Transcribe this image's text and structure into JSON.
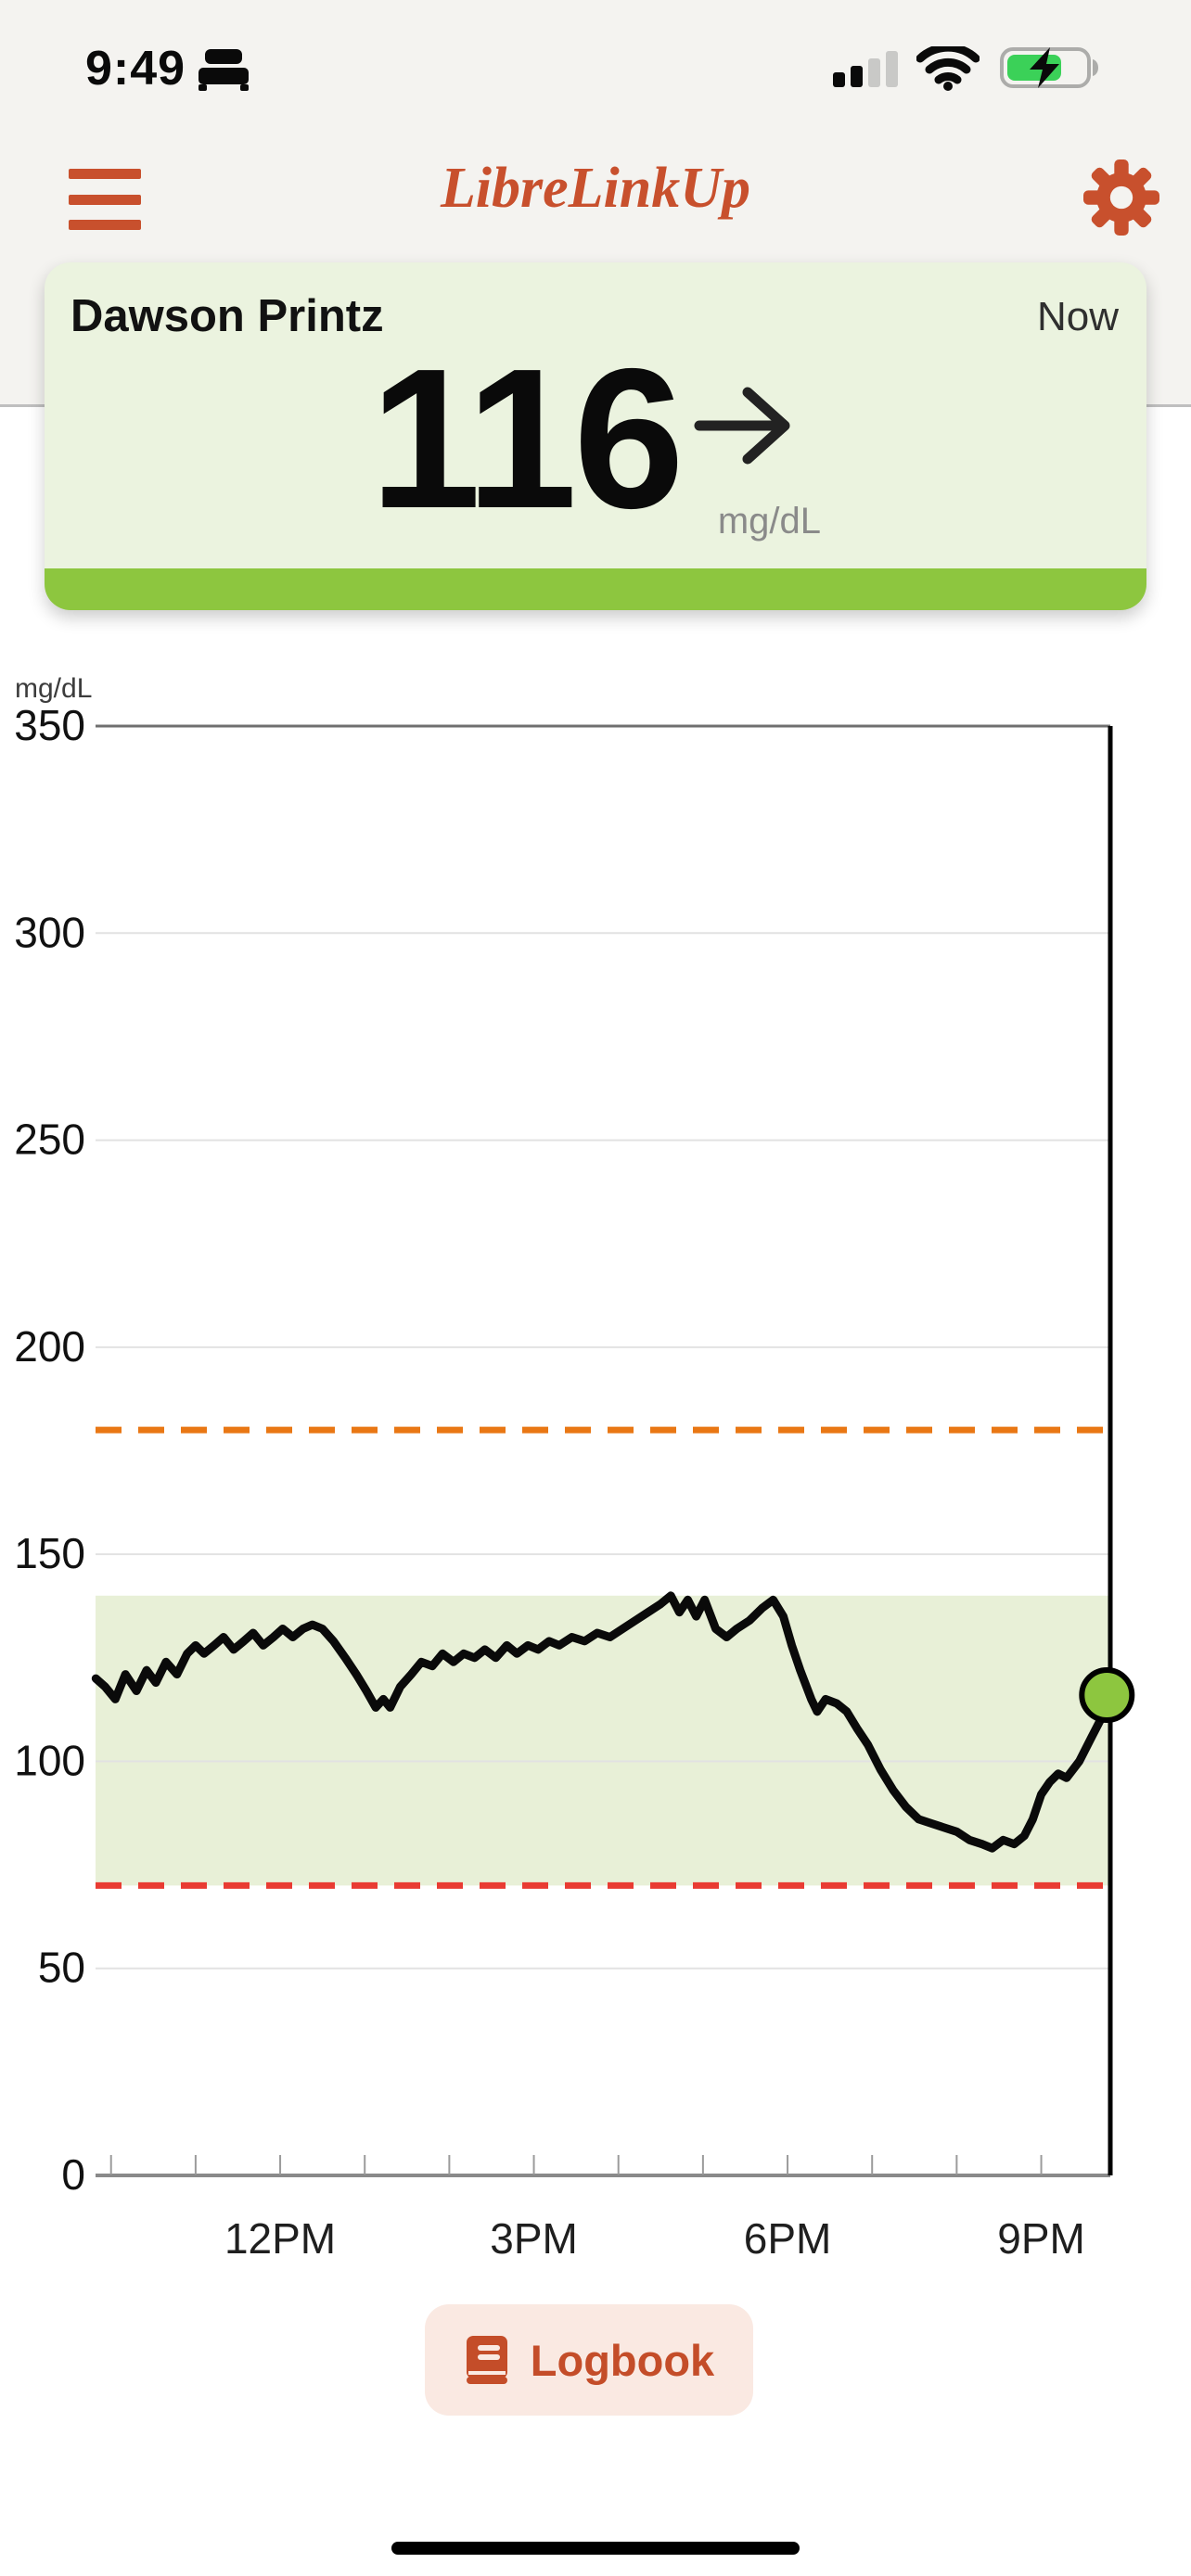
{
  "status_bar": {
    "time": "9:49",
    "icons": {
      "focus": "sleep-bed",
      "cellular": "signal-2-of-4-bars",
      "wifi": "wifi-full",
      "battery": "charging-62-percent"
    }
  },
  "header": {
    "title": "LibreLinkUp"
  },
  "patient_card": {
    "name": "Dawson Printz",
    "timestamp_label": "Now",
    "reading": {
      "value": "116",
      "unit": "mg/dL",
      "trend": "steady-right-arrow"
    }
  },
  "chart_data": {
    "type": "line",
    "title": "12-hour glucose trend",
    "ylabel": "mg/dL",
    "ylim": [
      0,
      350
    ],
    "yticks": [
      0,
      50,
      100,
      150,
      200,
      250,
      300,
      350
    ],
    "x_axis": {
      "start_hour": 9.8167,
      "end_hour": 21.8167,
      "tick_hours": [
        10,
        11,
        12,
        13,
        14,
        15,
        16,
        17,
        18,
        19,
        20,
        21
      ],
      "labels": [
        {
          "hour": 12,
          "label": "12PM"
        },
        {
          "hour": 15,
          "label": "3PM"
        },
        {
          "hour": 18,
          "label": "6PM"
        },
        {
          "hour": 21,
          "label": "9PM"
        }
      ]
    },
    "grid": true,
    "target_range": {
      "low": 70,
      "high": 140
    },
    "high_threshold": 180,
    "low_threshold": 70,
    "series": [
      {
        "name": "glucose",
        "points": [
          [
            9.82,
            120
          ],
          [
            9.93,
            118
          ],
          [
            10.05,
            115
          ],
          [
            10.17,
            121
          ],
          [
            10.3,
            117
          ],
          [
            10.42,
            122
          ],
          [
            10.53,
            119
          ],
          [
            10.65,
            124
          ],
          [
            10.78,
            121
          ],
          [
            10.9,
            126
          ],
          [
            11.0,
            128
          ],
          [
            11.1,
            126
          ],
          [
            11.22,
            128
          ],
          [
            11.33,
            130
          ],
          [
            11.45,
            127
          ],
          [
            11.57,
            129
          ],
          [
            11.68,
            131
          ],
          [
            11.8,
            128
          ],
          [
            11.92,
            130
          ],
          [
            12.03,
            132
          ],
          [
            12.15,
            130
          ],
          [
            12.27,
            132
          ],
          [
            12.38,
            133
          ],
          [
            12.5,
            132
          ],
          [
            12.63,
            129
          ],
          [
            12.77,
            125
          ],
          [
            12.9,
            121
          ],
          [
            13.02,
            117
          ],
          [
            13.13,
            113
          ],
          [
            13.22,
            115
          ],
          [
            13.3,
            113
          ],
          [
            13.42,
            118
          ],
          [
            13.55,
            121
          ],
          [
            13.67,
            124
          ],
          [
            13.8,
            123
          ],
          [
            13.92,
            126
          ],
          [
            14.05,
            124
          ],
          [
            14.17,
            126
          ],
          [
            14.3,
            125
          ],
          [
            14.42,
            127
          ],
          [
            14.55,
            125
          ],
          [
            14.68,
            128
          ],
          [
            14.8,
            126
          ],
          [
            14.93,
            128
          ],
          [
            15.05,
            127
          ],
          [
            15.18,
            129
          ],
          [
            15.3,
            128
          ],
          [
            15.45,
            130
          ],
          [
            15.6,
            129
          ],
          [
            15.75,
            131
          ],
          [
            15.9,
            130
          ],
          [
            16.05,
            132
          ],
          [
            16.2,
            134
          ],
          [
            16.35,
            136
          ],
          [
            16.5,
            138
          ],
          [
            16.62,
            140
          ],
          [
            16.72,
            136
          ],
          [
            16.82,
            139
          ],
          [
            16.92,
            135
          ],
          [
            17.02,
            139
          ],
          [
            17.15,
            132
          ],
          [
            17.28,
            130
          ],
          [
            17.4,
            132
          ],
          [
            17.55,
            134
          ],
          [
            17.7,
            137
          ],
          [
            17.83,
            139
          ],
          [
            17.95,
            135
          ],
          [
            18.05,
            128
          ],
          [
            18.15,
            122
          ],
          [
            18.28,
            115
          ],
          [
            18.35,
            112
          ],
          [
            18.45,
            115
          ],
          [
            18.58,
            114
          ],
          [
            18.7,
            112
          ],
          [
            18.82,
            108
          ],
          [
            18.95,
            104
          ],
          [
            19.1,
            98
          ],
          [
            19.25,
            93
          ],
          [
            19.4,
            89
          ],
          [
            19.55,
            86
          ],
          [
            19.7,
            85
          ],
          [
            19.85,
            84
          ],
          [
            20.0,
            83
          ],
          [
            20.15,
            81
          ],
          [
            20.3,
            80
          ],
          [
            20.42,
            79
          ],
          [
            20.55,
            81
          ],
          [
            20.68,
            80
          ],
          [
            20.8,
            82
          ],
          [
            20.9,
            86
          ],
          [
            21.0,
            92
          ],
          [
            21.1,
            95
          ],
          [
            21.2,
            97
          ],
          [
            21.3,
            96
          ],
          [
            21.45,
            100
          ],
          [
            21.6,
            106
          ],
          [
            21.7,
            110
          ],
          [
            21.82,
            116
          ]
        ]
      }
    ],
    "current_point": {
      "hour": 21.82,
      "value": 116
    },
    "legend": false
  },
  "footer": {
    "logbook_label": "Logbook"
  },
  "colors": {
    "brand_orange": "#C8502D",
    "card_bg": "#EBF3DF",
    "card_bar_green": "#8DC63F",
    "band_green": "#E8F0D7",
    "high_dash_orange": "#E97714",
    "low_dash_red": "#E93B32",
    "trace_black": "#0a0a0a",
    "dot_green": "#8DC63F",
    "gridline": "#E2E2E2",
    "axis_dark": "#6F6F6F",
    "axis_bottom": "#8A8A8A",
    "tick_gray": "#9B9B9B",
    "label_dark": "#1f1f1f",
    "battery_green": "#3BD158"
  }
}
